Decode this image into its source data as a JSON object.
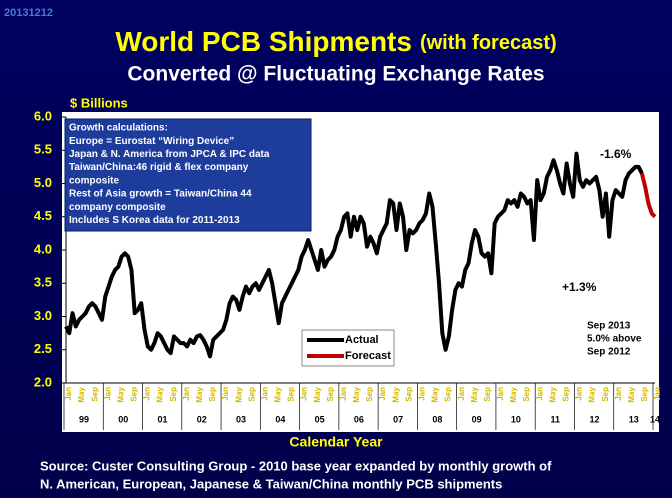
{
  "chart_data": {
    "type": "line",
    "stamp": "20131212",
    "title": "World PCB Shipments",
    "title_suffix": "(with forecast)",
    "subtitle": "Converted @ Fluctuating Exchange Rates",
    "y_axis_label": "$ Billions",
    "x_axis_label": "Calendar Year",
    "ylim": [
      2.0,
      6.0
    ],
    "yticks": [
      {
        "value": 2.0,
        "label": "2.0"
      },
      {
        "value": 2.5,
        "label": "2.5"
      },
      {
        "value": 3.0,
        "label": "3.0"
      },
      {
        "value": 3.5,
        "label": "3.5"
      },
      {
        "value": 4.0,
        "label": "4.0"
      },
      {
        "value": 4.5,
        "label": "4.5"
      },
      {
        "value": 5.0,
        "label": "5.0"
      },
      {
        "value": 5.5,
        "label": "5.5"
      },
      {
        "value": 6.0,
        "label": "6.0"
      }
    ],
    "categories": [
      "Jan",
      null,
      null,
      null,
      "May",
      null,
      null,
      null,
      "Sep",
      null,
      null,
      null,
      "Jan",
      null,
      null,
      null,
      "May",
      null,
      null,
      null,
      "Sep",
      null,
      null,
      null,
      "Jan",
      null,
      null,
      null,
      "May",
      null,
      null,
      null,
      "Sep",
      null,
      null,
      null,
      "Jan",
      null,
      null,
      null,
      "May",
      null,
      null,
      null,
      "Sep",
      null,
      null,
      null,
      "Jan",
      null,
      null,
      null,
      "May",
      null,
      null,
      null,
      "Sep",
      null,
      null,
      null,
      "Jan",
      null,
      null,
      null,
      "May",
      null,
      null,
      null,
      "Sep",
      null,
      null,
      null,
      "Jan",
      null,
      null,
      null,
      "May",
      null,
      null,
      null,
      "Sep",
      null,
      null,
      null,
      "Jan",
      null,
      null,
      null,
      "May",
      null,
      null,
      null,
      "Sep",
      null,
      null,
      null,
      "Jan",
      null,
      null,
      null,
      "May",
      null,
      null,
      null,
      "Sep",
      null,
      null,
      null,
      "Jan",
      null,
      null,
      null,
      "May",
      null,
      null,
      null,
      "Sep",
      null,
      null,
      null,
      "Jan",
      null,
      null,
      null,
      "May",
      null,
      null,
      null,
      "Sep",
      null,
      null,
      null,
      "Jan",
      null,
      null,
      null,
      "May",
      null,
      null,
      null,
      "Sep",
      null,
      null,
      null,
      "Jan",
      null,
      null,
      null,
      "May",
      null,
      null,
      null,
      "Sep",
      null,
      null,
      null,
      "Jan",
      null,
      null,
      null,
      "May",
      null,
      null,
      null,
      "Sep",
      null,
      null,
      null,
      "Jan",
      null,
      null,
      null,
      "May",
      null,
      null,
      null,
      "Sep",
      null,
      null,
      null,
      "Jan"
    ],
    "years": [
      "99",
      "00",
      "01",
      "02",
      "03",
      "04",
      "05",
      "06",
      "07",
      "08",
      "09",
      "10",
      "11",
      "12",
      "13",
      "14"
    ],
    "series": [
      {
        "name": "Actual",
        "color": "#000000",
        "values": [
          2.85,
          2.75,
          3.05,
          2.85,
          2.95,
          3.0,
          3.05,
          3.15,
          3.2,
          3.15,
          3.05,
          2.95,
          3.3,
          3.45,
          3.6,
          3.7,
          3.75,
          3.9,
          3.95,
          3.9,
          3.7,
          3.05,
          3.1,
          3.2,
          2.8,
          2.55,
          2.5,
          2.6,
          2.75,
          2.7,
          2.6,
          2.5,
          2.45,
          2.7,
          2.65,
          2.6,
          2.6,
          2.55,
          2.65,
          2.6,
          2.7,
          2.72,
          2.65,
          2.55,
          2.4,
          2.65,
          2.7,
          2.75,
          2.8,
          2.95,
          3.2,
          3.3,
          3.25,
          3.1,
          3.3,
          3.45,
          3.35,
          3.45,
          3.5,
          3.4,
          3.5,
          3.6,
          3.7,
          3.5,
          3.2,
          2.9,
          3.2,
          3.3,
          3.4,
          3.5,
          3.6,
          3.7,
          3.9,
          4.0,
          4.15,
          4.0,
          3.85,
          3.7,
          4.0,
          3.75,
          3.85,
          3.9,
          4.0,
          4.2,
          4.3,
          4.5,
          4.55,
          4.2,
          4.5,
          4.3,
          4.5,
          4.4,
          4.05,
          4.2,
          4.1,
          3.95,
          4.2,
          4.3,
          4.4,
          4.75,
          4.7,
          4.3,
          4.7,
          4.5,
          4.0,
          4.3,
          4.25,
          4.3,
          4.4,
          4.45,
          4.55,
          4.85,
          4.65,
          4.1,
          3.5,
          2.75,
          2.5,
          2.7,
          3.1,
          3.4,
          3.5,
          3.45,
          3.7,
          3.8,
          4.1,
          4.3,
          4.2,
          3.95,
          3.9,
          3.95,
          3.65,
          4.4,
          4.5,
          4.55,
          4.6,
          4.75,
          4.7,
          4.75,
          4.65,
          4.85,
          4.8,
          4.7,
          4.75,
          4.15,
          5.05,
          4.75,
          4.85,
          5.1,
          5.2,
          5.35,
          5.2,
          5.0,
          4.85,
          5.3,
          5.0,
          4.8,
          5.45,
          5.05,
          4.95,
          5.05,
          5.0,
          5.05,
          5.1,
          4.9,
          4.5,
          4.85,
          4.2,
          4.75,
          4.9,
          4.85,
          4.8,
          5.05,
          5.15,
          5.2,
          5.25,
          5.25,
          5.15,
          null,
          null,
          null,
          null
        ]
      },
      {
        "name": "Forecast",
        "color": "#c00000",
        "values": [
          null,
          null,
          null,
          null,
          null,
          null,
          null,
          null,
          null,
          null,
          null,
          null,
          null,
          null,
          null,
          null,
          null,
          null,
          null,
          null,
          null,
          null,
          null,
          null,
          null,
          null,
          null,
          null,
          null,
          null,
          null,
          null,
          null,
          null,
          null,
          null,
          null,
          null,
          null,
          null,
          null,
          null,
          null,
          null,
          null,
          null,
          null,
          null,
          null,
          null,
          null,
          null,
          null,
          null,
          null,
          null,
          null,
          null,
          null,
          null,
          null,
          null,
          null,
          null,
          null,
          null,
          null,
          null,
          null,
          null,
          null,
          null,
          null,
          null,
          null,
          null,
          null,
          null,
          null,
          null,
          null,
          null,
          null,
          null,
          null,
          null,
          null,
          null,
          null,
          null,
          null,
          null,
          null,
          null,
          null,
          null,
          null,
          null,
          null,
          null,
          null,
          null,
          null,
          null,
          null,
          null,
          null,
          null,
          null,
          null,
          null,
          null,
          null,
          null,
          null,
          null,
          null,
          null,
          null,
          null,
          null,
          null,
          null,
          null,
          null,
          null,
          null,
          null,
          null,
          null,
          null,
          null,
          null,
          null,
          null,
          null,
          null,
          null,
          null,
          null,
          null,
          null,
          null,
          null,
          null,
          null,
          null,
          null,
          null,
          null,
          null,
          null,
          null,
          null,
          null,
          null,
          null,
          null,
          null,
          null,
          null,
          null,
          null,
          null,
          null,
          null,
          null,
          null,
          null,
          null,
          null,
          null,
          null,
          null,
          null,
          null,
          5.15,
          4.95,
          4.7,
          4.55,
          4.5
        ]
      }
    ],
    "notes_box": [
      "Growth calculations:",
      "Europe = Eurostat “Wiring Device”",
      "Japan & N. America from JPCA & IPC data",
      "Taiwan/China:46 rigid & flex company",
      "composite",
      "Rest of Asia growth = Taiwan/China 44",
      "company composite",
      "Includes S Korea data for 2011-2013"
    ],
    "annotations": [
      "-1.6%",
      "+1.3%"
    ],
    "sep_note": [
      "Sep 2013",
      "5.0% above",
      "Sep 2012"
    ],
    "source": [
      "Source: Custer Consulting Group - 2010 base year expanded by monthly growth of",
      "N. American, European, Japanese & Taiwan/China monthly PCB shipments"
    ]
  }
}
